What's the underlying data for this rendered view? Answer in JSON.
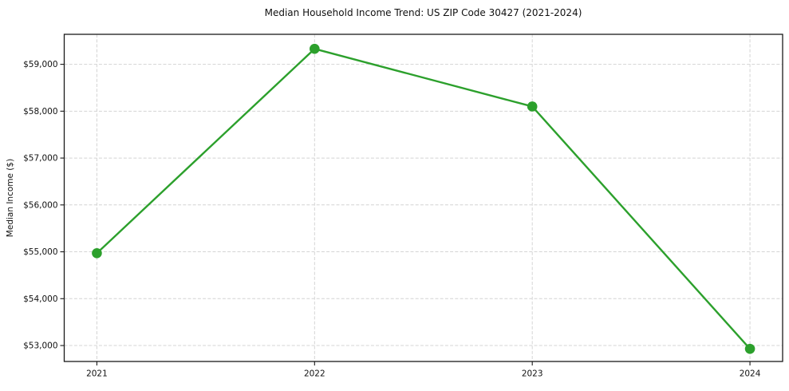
{
  "chart_data": {
    "type": "line",
    "title": "Median Household Income Trend: US ZIP Code 30427 (2021-2024)",
    "xlabel": "",
    "ylabel": "Median Income ($)",
    "x": [
      2021,
      2022,
      2023,
      2024
    ],
    "series": [
      {
        "name": "Median Household Income",
        "values": [
          54970,
          59330,
          58100,
          52930
        ]
      }
    ],
    "x_tick_labels": [
      "2021",
      "2022",
      "2023",
      "2024"
    ],
    "y_ticks": [
      53000,
      54000,
      55000,
      56000,
      57000,
      58000,
      59000
    ],
    "y_tick_labels": [
      "$53,000",
      "$54,000",
      "$55,000",
      "$56,000",
      "$57,000",
      "$58,000",
      "$59,000"
    ],
    "xlim": [
      2020.85,
      2024.15
    ],
    "ylim": [
      52660,
      59640
    ],
    "grid": true,
    "grid_style": "dashed",
    "legend": "none",
    "colors": {
      "line": "#2ca02c",
      "marker": "#2ca02c",
      "grid": "#d4d4d4",
      "axis": "#1a1a1a",
      "background": "#ffffff"
    }
  }
}
